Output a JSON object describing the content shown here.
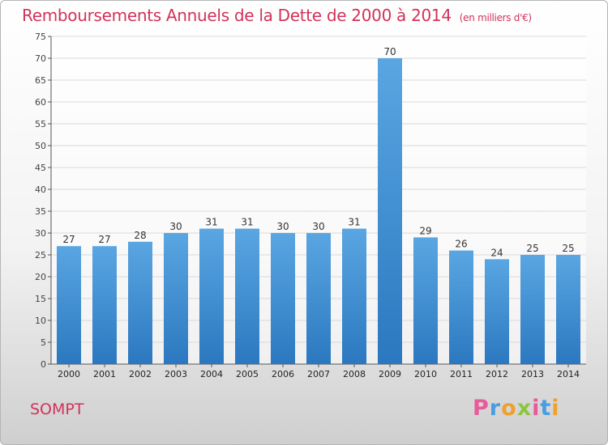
{
  "header": {
    "title": "Remboursements Annuels de la Dette de 2000 à 2014",
    "unit": "(en milliers d'€)"
  },
  "footer": {
    "commune": "SOMPT"
  },
  "logo": {
    "letters": [
      "P",
      "r",
      "o",
      "x",
      "i",
      "t",
      "i"
    ],
    "colors": [
      "#e85a9a",
      "#4a9de0",
      "#f0a02c",
      "#8cc63f",
      "#e85a9a",
      "#4a9de0",
      "#f0a02c"
    ]
  },
  "colors": {
    "bar_top": "#5aa6e2",
    "bar_bottom": "#2b78c0",
    "title": "#d2325a",
    "grid": "#d9d9d9"
  },
  "chart_data": {
    "type": "bar",
    "title": "Remboursements Annuels de la Dette de 2000 à 2014",
    "categories": [
      "2000",
      "2001",
      "2002",
      "2003",
      "2004",
      "2005",
      "2006",
      "2007",
      "2008",
      "2009",
      "2010",
      "2011",
      "2012",
      "2013",
      "2014"
    ],
    "values": [
      27,
      27,
      28,
      30,
      31,
      31,
      30,
      30,
      31,
      70,
      29,
      26,
      24,
      25,
      25
    ],
    "ylim": [
      0,
      75
    ],
    "yticks": [
      0,
      5,
      10,
      15,
      20,
      25,
      30,
      35,
      40,
      45,
      50,
      55,
      60,
      65,
      70,
      75
    ],
    "grid": true,
    "data_labels": true
  }
}
